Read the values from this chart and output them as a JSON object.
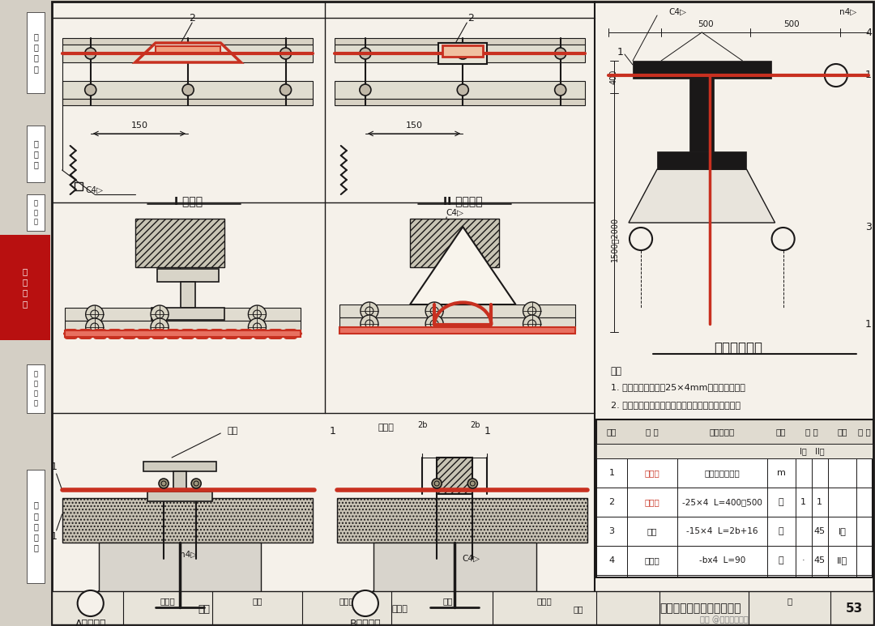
{
  "bg_color": "#d4cfc5",
  "paper_color": "#f2ede4",
  "white_color": "#f5f1ea",
  "line_color": "#1a1818",
  "red_color": "#c83020",
  "gray_fill": "#c8c2b4",
  "hatch_fill": "#b8b2a4",
  "notes": [
    "1. 吊车钢轨之间应以25×4mm扁钢焊接接通。",
    "2. 单轨、电梯及输送系统等钢轨均可参照本图连接。"
  ],
  "table_rows": [
    [
      "1",
      "接地线",
      "由工程设计确定",
      "m",
      "",
      "",
      ""
    ],
    [
      "2",
      "跨接线",
      "-25×4  L=400～500",
      "个",
      "1",
      "1",
      ""
    ],
    [
      "3",
      "套卡",
      "-15×4  L=2b+16",
      "个",
      "",
      "45",
      "I型"
    ],
    [
      "4",
      "固定钩",
      "-bx4  L=90",
      "个",
      "·",
      "45",
      "II型"
    ]
  ],
  "page_num": "53"
}
